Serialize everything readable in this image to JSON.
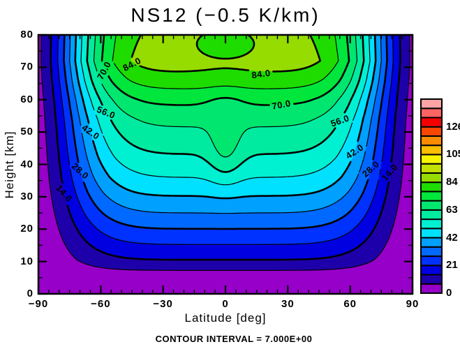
{
  "title": "NS12 (−0.5 K/km)",
  "annotation": "CONTOUR INTERVAL = 7.000E+00",
  "axes": {
    "x": {
      "label": "Latitude [deg]",
      "min": -90,
      "max": 90,
      "major_ticks": [
        -90,
        -60,
        -30,
        0,
        30,
        60,
        90
      ],
      "tick_labels": [
        "−90",
        "−60",
        "−30",
        "0",
        "30",
        "60",
        "90"
      ],
      "minor_step": 5
    },
    "y": {
      "label": "Height [km]",
      "min": 0,
      "max": 80,
      "major_ticks": [
        0,
        10,
        20,
        30,
        40,
        50,
        60,
        70,
        80
      ],
      "tick_labels": [
        "0",
        "10",
        "20",
        "30",
        "40",
        "50",
        "60",
        "70",
        "80"
      ],
      "minor_step": 5
    }
  },
  "colorbar": {
    "min": 0,
    "max": 147,
    "n_cells": 21,
    "cell_interval": 7,
    "tick_values": [
      0,
      21,
      42,
      63,
      84,
      105,
      126
    ],
    "tick_labels": [
      "0",
      "21",
      "42",
      "63",
      "84",
      "105",
      "126"
    ]
  },
  "chart_data": {
    "type": "contour",
    "title": "NS12 (−0.5 K/km)",
    "xlabel": "Latitude [deg]",
    "ylabel": "Height [km]",
    "x_range": [
      -90,
      90
    ],
    "y_range": [
      0,
      80
    ],
    "grid": false,
    "contour_interval": 7.0,
    "levels": [
      7,
      14,
      21,
      28,
      35,
      42,
      49,
      56,
      63,
      70,
      77,
      84,
      91
    ],
    "thick_labeled_levels": [
      14,
      28,
      42,
      56,
      70,
      84
    ],
    "thin_levels": [
      7,
      21,
      35,
      49,
      63,
      77,
      91
    ],
    "field_max_approx": 88,
    "field_min_approx": 0,
    "palette": [
      "#9600C8",
      "#1E00AA",
      "#0000E1",
      "#0032FF",
      "#0069FF",
      "#00A0FF",
      "#00E1FF",
      "#00F0D2",
      "#00EBA0",
      "#00E66E",
      "#00E63C",
      "#1EDC00",
      "#96DC00",
      "#C3E100",
      "#F5F500",
      "#FFBE00",
      "#FF8C00",
      "#FF4600",
      "#F50000",
      "#FF6464",
      "#FFA5A5"
    ],
    "contour_labels": [
      {
        "text": "14.0",
        "lat": -77.5,
        "z": 31,
        "rot": 48
      },
      {
        "text": "28.0",
        "lat": -70,
        "z": 38,
        "rot": 42
      },
      {
        "text": "42.0",
        "lat": -64.7,
        "z": 50,
        "rot": 35
      },
      {
        "text": "56.0",
        "lat": -57.5,
        "z": 56,
        "rot": 22
      },
      {
        "text": "70.0",
        "lat": -58.5,
        "z": 69,
        "rot": -62
      },
      {
        "text": "84.0",
        "lat": -45,
        "z": 71,
        "rot": -28
      },
      {
        "text": "84.0",
        "lat": 17,
        "z": 68,
        "rot": -8
      },
      {
        "text": "70.0",
        "lat": 27,
        "z": 58.5,
        "rot": -10
      },
      {
        "text": "56.0",
        "lat": 55,
        "z": 53.5,
        "rot": -20
      },
      {
        "text": "42.0",
        "lat": 62,
        "z": 44,
        "rot": -33
      },
      {
        "text": "28.0",
        "lat": 70,
        "z": 38.5,
        "rot": -42
      },
      {
        "text": "14.0",
        "lat": 79,
        "z": 37.5,
        "rot": -48
      }
    ],
    "field_model": {
      "description": "V(lat,z) = profile(z)*exp(-(|lat|/scale)^power) + ridge + top_dip + mid_dip (gaussian terms in lat,z); approximate reconstruction of the plotted field",
      "height_profile_anchors": [
        [
          0,
          -6
        ],
        [
          4,
          0
        ],
        [
          10.5,
          14
        ],
        [
          18,
          25
        ],
        [
          25,
          35
        ],
        [
          31,
          43
        ],
        [
          36,
          49
        ],
        [
          42,
          55
        ],
        [
          48,
          60
        ],
        [
          54,
          65
        ],
        [
          60,
          72
        ],
        [
          66,
          81
        ],
        [
          72,
          88
        ],
        [
          80,
          86
        ]
      ],
      "lat_decay": {
        "scale_deg": 76,
        "power": 6
      },
      "equator_ridge": {
        "amp": 8,
        "sigma_lat": 8,
        "z_center": 44,
        "sigma_z": 10
      },
      "top_dip": {
        "amp": -6,
        "sigma_lat": 16,
        "z_center": 76,
        "sigma_z": 5
      },
      "mid_dip": {
        "amp": -4,
        "sigma_lat": 9,
        "z_center": 58,
        "sigma_z": 6
      }
    }
  }
}
